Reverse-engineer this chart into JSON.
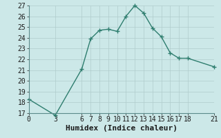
{
  "x": [
    0,
    3,
    6,
    7,
    8,
    9,
    10,
    11,
    12,
    13,
    14,
    15,
    16,
    17,
    18,
    21
  ],
  "y": [
    18.3,
    16.8,
    21.1,
    23.9,
    24.7,
    24.8,
    24.6,
    26.0,
    27.0,
    26.3,
    24.9,
    24.1,
    22.6,
    22.1,
    22.1,
    21.3
  ],
  "line_color": "#2e7d6e",
  "marker": "+",
  "background_color": "#cce8e8",
  "grid_color": "#b0cccc",
  "xlabel": "Humidex (Indice chaleur)",
  "xlim": [
    0,
    21
  ],
  "ylim": [
    17,
    27
  ],
  "xticks": [
    0,
    3,
    6,
    7,
    8,
    9,
    10,
    11,
    12,
    13,
    14,
    15,
    16,
    17,
    18,
    21
  ],
  "yticks": [
    17,
    18,
    19,
    20,
    21,
    22,
    23,
    24,
    25,
    26,
    27
  ],
  "linewidth": 1.0,
  "markersize": 4,
  "tick_fontsize": 7,
  "xlabel_fontsize": 8
}
